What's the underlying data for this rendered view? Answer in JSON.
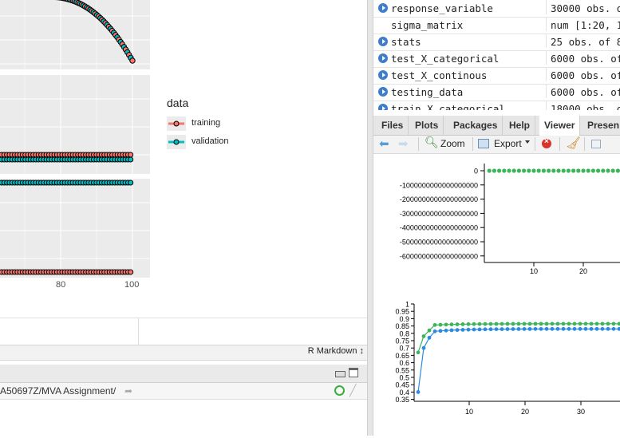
{
  "legend": {
    "title": "data",
    "items": [
      {
        "label": "training",
        "color": "#f8766d"
      },
      {
        "label": "validation",
        "color": "#00bfc4"
      }
    ]
  },
  "facet_x_ticks": [
    "80",
    "100"
  ],
  "editor": {
    "mode_select": "R Markdown ↕",
    "console_path": "A50697Z/MVA Assignment/"
  },
  "environment": {
    "rows": [
      {
        "name": "response_variable",
        "value": "30000 obs. o",
        "expandable": true
      },
      {
        "name": "sigma_matrix",
        "value": "num [1:20, 1",
        "expandable": false
      },
      {
        "name": "stats",
        "value": "25 obs. of 8",
        "expandable": true
      },
      {
        "name": "test_X_categorical",
        "value": "6000 obs. of",
        "expandable": true
      },
      {
        "name": "test_X_continous",
        "value": "6000 obs. of",
        "expandable": true
      },
      {
        "name": "testing_data",
        "value": "6000 obs. of",
        "expandable": true
      },
      {
        "name": "train_X_categorical",
        "value": "18000 obs. o",
        "expandable": true
      }
    ]
  },
  "tabs": [
    "Files",
    "Plots",
    "Packages",
    "Help",
    "Viewer",
    "Presen"
  ],
  "active_tab": "Viewer",
  "toolbar": {
    "zoom": "Zoom",
    "export": "Export"
  },
  "viewer": {
    "chart1": {
      "y_ticks": [
        "0",
        "-1000000000000000000",
        "-2000000000000000000",
        "-3000000000000000000",
        "-4000000000000000000",
        "-5000000000000000000",
        "-6000000000000000000"
      ],
      "x_ticks": [
        "10",
        "20"
      ]
    },
    "chart2": {
      "y_ticks": [
        "1",
        "0.95",
        "0.9",
        "0.85",
        "0.8",
        "0.75",
        "0.7",
        "0.65",
        "0.6",
        "0.55",
        "0.5",
        "0.45",
        "0.4",
        "0.35"
      ],
      "x_ticks": [
        "10",
        "20",
        "30"
      ],
      "green_color": "#3cb55a",
      "blue_color": "#2b8be2"
    }
  }
}
